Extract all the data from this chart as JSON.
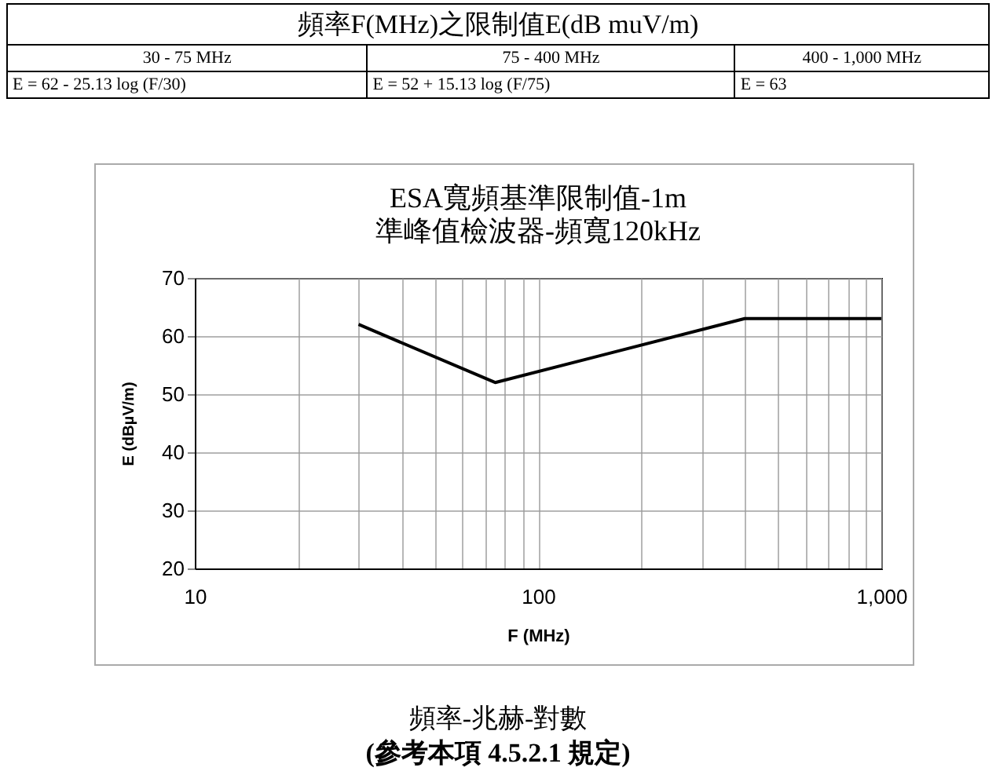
{
  "chart_data": {
    "type": "line",
    "title": "ESA寬頻基準限制值-1m",
    "subtitle": "準峰值檢波器-頻寬120kHz",
    "xlabel": "F (MHz)",
    "ylabel": "E (dBµV/m)",
    "x": [
      30,
      75,
      400,
      1000
    ],
    "values": [
      62,
      52,
      63,
      63
    ],
    "color": "#000000",
    "log": "x",
    "grid": true,
    "marker": "none",
    "line_style": "solid",
    "xlim": [
      10,
      1000
    ],
    "ylim": [
      20,
      70
    ],
    "xticks": [
      10,
      {
        "value": 20,
        "label": null
      },
      {
        "value": 30,
        "label": null
      },
      {
        "value": 40,
        "label": null
      },
      {
        "value": 50,
        "label": null
      },
      {
        "value": 60,
        "label": null
      },
      {
        "value": 70,
        "label": null
      },
      {
        "value": 80,
        "label": null
      },
      {
        "value": 90,
        "label": null
      },
      100,
      {
        "value": 200,
        "label": null
      },
      {
        "value": 300,
        "label": null
      },
      {
        "value": 400,
        "label": null
      },
      {
        "value": 500,
        "label": null
      },
      {
        "value": 600,
        "label": null
      },
      {
        "value": 700,
        "label": null
      },
      {
        "value": 800,
        "label": null
      },
      {
        "value": 900,
        "label": null
      },
      {
        "value": 1000,
        "label": "1,000"
      }
    ],
    "yticks": [
      20,
      30,
      40,
      50,
      60,
      70
    ],
    "annotations": [
      "頻率F(MHz)之限制值E(dB muV/m)",
      "30 - 75 MHz",
      "75 - 400 MHz",
      "400 - 1,000 MHz",
      "E = 62 - 25.13 log (F/30)",
      "E = 52 + 15.13 log (F/75)",
      "E = 63",
      "頻率-兆赫-對數",
      "(參考本項 4.5.2.1 規定)"
    ]
  }
}
